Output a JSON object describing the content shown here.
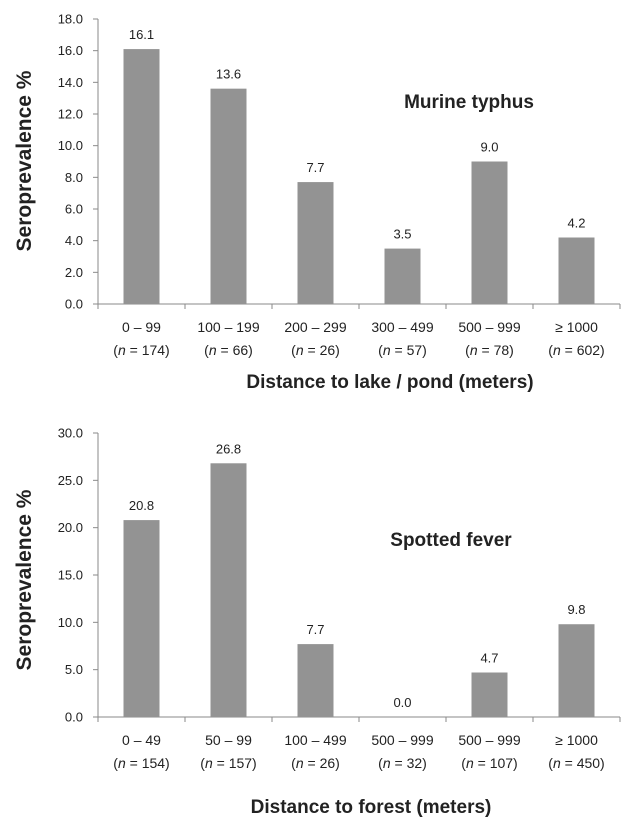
{
  "chart_data": [
    {
      "type": "bar",
      "title": "Murine typhus",
      "xlabel": "Distance to lake / pond (meters)",
      "ylabel": "Seroprevalence %",
      "categories": [
        "0 – 99",
        "100 – 199",
        "200 – 299",
        "300 – 499",
        "500 – 999",
        "≥ 1000"
      ],
      "n_labels": [
        "174",
        "66",
        "26",
        "57",
        "78",
        "602"
      ],
      "values": [
        16.1,
        13.6,
        7.7,
        3.5,
        9.0,
        4.2
      ],
      "value_labels": [
        "16.1",
        "13.6",
        "7.7",
        "3.5",
        "9.0",
        "4.2"
      ],
      "ylim": [
        0,
        18
      ],
      "yticks": [
        "0.0",
        "2.0",
        "4.0",
        "6.0",
        "8.0",
        "10.0",
        "12.0",
        "14.0",
        "16.0",
        "18.0"
      ],
      "bar_color": "#939393",
      "grid": false
    },
    {
      "type": "bar",
      "title": "Spotted fever",
      "xlabel": "Distance to forest (meters)",
      "ylabel": "Seroprevalence %",
      "categories": [
        "0 – 49",
        "50 – 99",
        "100 – 499",
        "500 – 999",
        "500 – 999",
        "≥ 1000"
      ],
      "n_labels": [
        "154",
        "157",
        "26",
        "32",
        "107",
        "450"
      ],
      "values": [
        20.8,
        26.8,
        7.7,
        0.0,
        4.7,
        9.8
      ],
      "value_labels": [
        "20.8",
        "26.8",
        "7.7",
        "0.0",
        "4.7",
        "9.8"
      ],
      "ylim": [
        0,
        30
      ],
      "yticks": [
        "0.0",
        "5.0",
        "10.0",
        "15.0",
        "20.0",
        "25.0",
        "30.0"
      ],
      "bar_color": "#939393",
      "grid": false
    }
  ],
  "n_prefix": "n",
  "n_equals": " = "
}
